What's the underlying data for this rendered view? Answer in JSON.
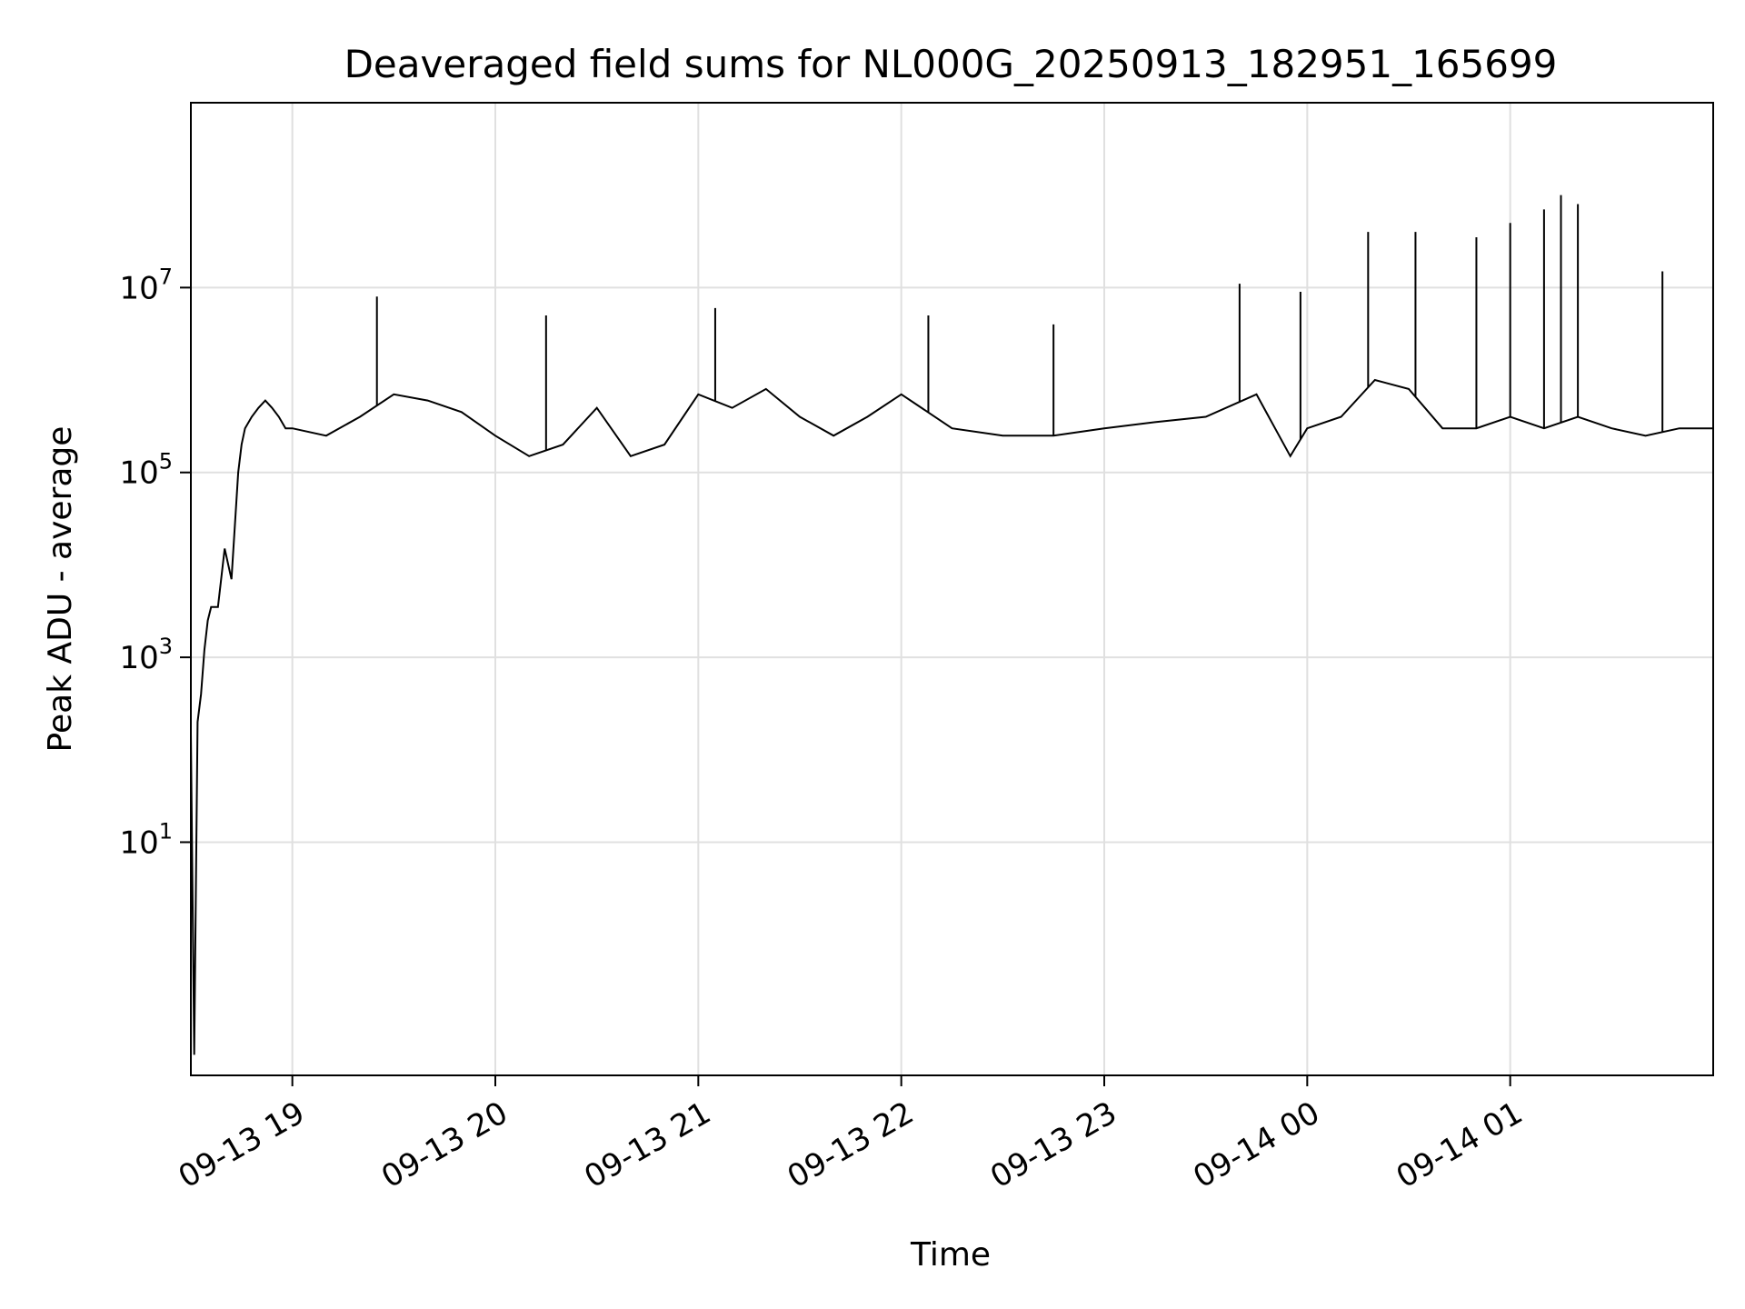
{
  "chart_data": {
    "type": "line",
    "title": "Deaveraged field sums for NL000G_20250913_182951_165699",
    "xlabel": "Time",
    "ylabel": "Peak ADU - average",
    "yscale": "log",
    "xlim": [
      "2025-09-13 18:30",
      "2025-09-14 02:00"
    ],
    "ylim": [
      0.03,
      1000000000
    ],
    "x_ticks": [
      {
        "time": "2025-09-13 19:00",
        "label": "09-13 19"
      },
      {
        "time": "2025-09-13 20:00",
        "label": "09-13 20"
      },
      {
        "time": "2025-09-13 21:00",
        "label": "09-13 21"
      },
      {
        "time": "2025-09-13 22:00",
        "label": "09-13 22"
      },
      {
        "time": "2025-09-13 23:00",
        "label": "09-13 23"
      },
      {
        "time": "2025-09-14 00:00",
        "label": "09-14 00"
      },
      {
        "time": "2025-09-14 01:00",
        "label": "09-14 01"
      }
    ],
    "y_ticks": [
      {
        "value": 10,
        "base": "10",
        "exp": "1"
      },
      {
        "value": 1000,
        "base": "10",
        "exp": "3"
      },
      {
        "value": 100000,
        "base": "10",
        "exp": "5"
      },
      {
        "value": 10000000,
        "base": "10",
        "exp": "7"
      }
    ],
    "grid": true,
    "line_color": "#000000",
    "grid_color": "#e0e0e0",
    "series": [
      {
        "x": [
          "2025-09-13 18:30",
          "2025-09-13 18:31",
          "2025-09-13 18:32",
          "2025-09-13 18:33",
          "2025-09-13 18:34",
          "2025-09-13 18:35",
          "2025-09-13 18:36",
          "2025-09-13 18:38",
          "2025-09-13 18:40",
          "2025-09-13 18:42",
          "2025-09-13 18:44",
          "2025-09-13 18:45",
          "2025-09-13 18:46",
          "2025-09-13 18:48",
          "2025-09-13 18:50",
          "2025-09-13 18:52",
          "2025-09-13 18:54",
          "2025-09-13 18:56",
          "2025-09-13 18:58",
          "2025-09-13 19:00",
          "2025-09-13 19:10",
          "2025-09-13 19:20",
          "2025-09-13 19:30",
          "2025-09-13 19:40",
          "2025-09-13 19:50",
          "2025-09-13 20:00",
          "2025-09-13 20:10",
          "2025-09-13 20:20",
          "2025-09-13 20:30",
          "2025-09-13 20:40",
          "2025-09-13 20:50",
          "2025-09-13 21:00",
          "2025-09-13 21:10",
          "2025-09-13 21:20",
          "2025-09-13 21:30",
          "2025-09-13 21:40",
          "2025-09-13 21:50",
          "2025-09-13 22:00",
          "2025-09-13 22:15",
          "2025-09-13 22:30",
          "2025-09-13 22:45",
          "2025-09-13 23:00",
          "2025-09-13 23:15",
          "2025-09-13 23:30",
          "2025-09-13 23:45",
          "2025-09-13 23:55",
          "2025-09-14 00:00",
          "2025-09-14 00:10",
          "2025-09-14 00:20",
          "2025-09-14 00:30",
          "2025-09-14 00:40",
          "2025-09-14 00:50",
          "2025-09-14 01:00",
          "2025-09-14 01:10",
          "2025-09-14 01:20",
          "2025-09-14 01:30",
          "2025-09-14 01:40",
          "2025-09-14 01:50",
          "2025-09-14 02:00"
        ],
        "y": [
          150,
          0.05,
          200,
          400,
          1200,
          2500,
          3500,
          3500,
          15000,
          7000,
          100000,
          200000,
          300000,
          400000,
          500000,
          600000,
          500000,
          400000,
          300000,
          300000,
          250000,
          400000,
          700000,
          600000,
          450000,
          250000,
          150000,
          200000,
          500000,
          150000,
          200000,
          700000,
          500000,
          800000,
          400000,
          250000,
          400000,
          700000,
          300000,
          250000,
          250000,
          300000,
          350000,
          400000,
          700000,
          150000,
          300000,
          400000,
          1000000,
          800000,
          300000,
          300000,
          400000,
          300000,
          400000,
          300000,
          250000,
          300000,
          300000
        ],
        "peaks": [
          {
            "x": "2025-09-13 19:25",
            "y": 8000000
          },
          {
            "x": "2025-09-13 20:15",
            "y": 5000000
          },
          {
            "x": "2025-09-13 21:05",
            "y": 6000000
          },
          {
            "x": "2025-09-13 22:08",
            "y": 5000000
          },
          {
            "x": "2025-09-13 22:45",
            "y": 4000000
          },
          {
            "x": "2025-09-13 23:40",
            "y": 11000000
          },
          {
            "x": "2025-09-13 23:58",
            "y": 9000000
          },
          {
            "x": "2025-09-14 00:18",
            "y": 40000000
          },
          {
            "x": "2025-09-14 00:32",
            "y": 40000000
          },
          {
            "x": "2025-09-14 00:50",
            "y": 35000000
          },
          {
            "x": "2025-09-14 01:00",
            "y": 50000000
          },
          {
            "x": "2025-09-14 01:10",
            "y": 70000000
          },
          {
            "x": "2025-09-14 01:15",
            "y": 100000000
          },
          {
            "x": "2025-09-14 01:20",
            "y": 80000000
          },
          {
            "x": "2025-09-14 01:45",
            "y": 15000000
          }
        ]
      }
    ]
  }
}
